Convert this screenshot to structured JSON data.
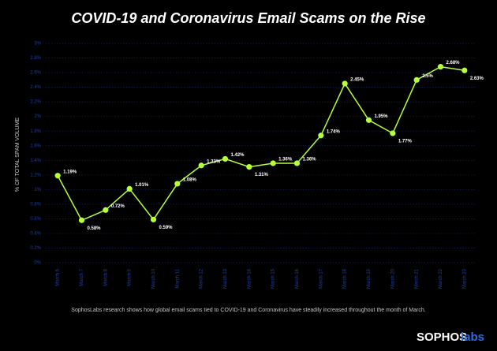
{
  "chart_data": {
    "type": "line",
    "title": "COVID-19 and Coronavirus Email Scams on the Rise",
    "y_label": "% OF TOTAL SPAM VOLUME",
    "categories": [
      "March 6",
      "March 7",
      "March 8",
      "March 9",
      "March 10",
      "March 11",
      "March 12",
      "March 13",
      "March 14",
      "March 15",
      "March 16",
      "March 17",
      "March 18",
      "March 19",
      "March 20",
      "March 21",
      "March 22",
      "March 23"
    ],
    "values": [
      1.19,
      0.58,
      0.72,
      1.01,
      0.59,
      1.08,
      1.33,
      1.42,
      1.31,
      1.36,
      1.36,
      1.74,
      2.45,
      1.95,
      1.77,
      2.5,
      2.68,
      2.63
    ],
    "value_labels": [
      "1.19%",
      "0.58%",
      "0.72%",
      "1.01%",
      "0.59%",
      "1.08%",
      "1.33%",
      "1.42%",
      "1.31%",
      "1.36%",
      "1.36%",
      "1.74%",
      "2.45%",
      "1.95%",
      "1.77%",
      "2.5%",
      "2.68%",
      "2.63%"
    ],
    "color": "#b5ff3c",
    "ylim": [
      0,
      3
    ],
    "yticks": [
      {
        "value": 0,
        "label": "0%"
      },
      {
        "value": 0.2,
        "label": "0.2%"
      },
      {
        "value": 0.4,
        "label": "0.4%"
      },
      {
        "value": 0.6,
        "label": "0.6%"
      },
      {
        "value": 0.8,
        "label": "0.8%"
      },
      {
        "value": 1,
        "label": "1%"
      },
      {
        "value": 1.2,
        "label": "1.2%"
      },
      {
        "value": 1.4,
        "label": "1.4%"
      },
      {
        "value": 1.6,
        "label": "1.6%"
      },
      {
        "value": 1.8,
        "label": "1.8%"
      },
      {
        "value": 2,
        "label": "2%"
      },
      {
        "value": 2.2,
        "label": "2.2%"
      },
      {
        "value": 2.4,
        "label": "2.4%"
      },
      {
        "value": 2.6,
        "label": "2.6%"
      },
      {
        "value": 2.8,
        "label": "2.8%"
      },
      {
        "value": 3,
        "label": "3%"
      }
    ],
    "grid": true
  },
  "caption": "SophosLabs research shows how global email scams tied to COVID-19 and Coronavirus have steadily increased throughout the month of March.",
  "logo": {
    "brand": "SOPHOS",
    "suffix": "labs"
  }
}
